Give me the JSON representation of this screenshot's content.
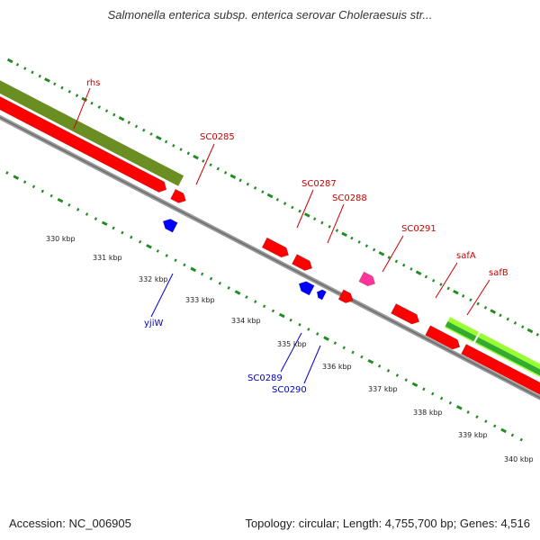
{
  "title": "Salmonella enterica subsp. enterica serovar Choleraesuis str...",
  "footer": {
    "accession": "Accession: NC_006905",
    "stats": "Topology: circular; Length: 4,755,700 bp; Genes: 4,516"
  },
  "colors": {
    "background": "#ffffff",
    "forward_cds": "#ff0000",
    "reverse_cds": "#0000ff",
    "highlight_cds": "#ff3399",
    "rhs_region": "#6b8e23",
    "saf_region_light": "#99ff33",
    "saf_region_dark": "#33aa33",
    "backbone": "#888888",
    "tick": "#228b22",
    "forward_label": "#cc0000",
    "reverse_label": "#0000cc"
  },
  "scale": {
    "unit": "kbp",
    "labels": [
      "330 kbp",
      "331 kbp",
      "332 kbp",
      "333 kbp",
      "334 kbp",
      "335 kbp",
      "336 kbp",
      "337 kbp",
      "338 kbp",
      "339 kbp",
      "340 kbp"
    ]
  },
  "features": {
    "forward": [
      {
        "label": "rhs"
      },
      {
        "label": "SC0285"
      },
      {
        "label": "SC0287"
      },
      {
        "label": "SC0288"
      },
      {
        "label": "SC0291"
      },
      {
        "label": "safA"
      },
      {
        "label": "safB"
      }
    ],
    "reverse": [
      {
        "label": "yjiW"
      },
      {
        "label": "SC0289"
      },
      {
        "label": "SC0290"
      }
    ]
  }
}
